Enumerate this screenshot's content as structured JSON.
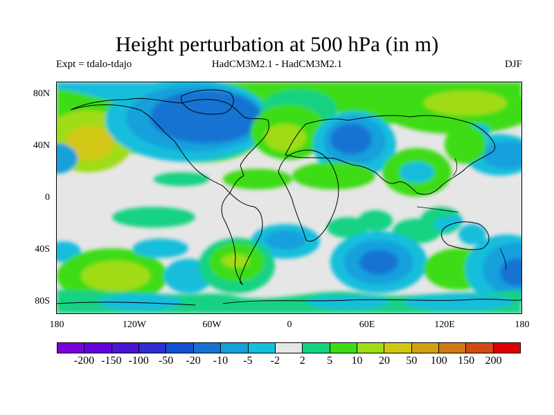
{
  "title": "Height perturbation at 500 hPa (in m)",
  "subtitle_left": "Expt = tdalo-tdajo",
  "subtitle_center": "HadCM3M2.1 - HadCM3M2.1",
  "subtitle_right": "DJF",
  "lat_ticks": [
    "80N",
    "40N",
    "0",
    "40S",
    "80S"
  ],
  "lon_ticks": [
    "180",
    "120W",
    "60W",
    "0",
    "60E",
    "120E",
    "180"
  ],
  "colorbar": {
    "colors": [
      "#7a00dc",
      "#6400dc",
      "#4b14d2",
      "#2d2dd2",
      "#1450d2",
      "#1473d2",
      "#14a0dc",
      "#14bedc",
      "#e6e6e6",
      "#14d282",
      "#3cdc14",
      "#a0dc14",
      "#d2c814",
      "#d2a014",
      "#d27814",
      "#d24b14",
      "#dc0000"
    ],
    "labels": [
      "-200",
      "-150",
      "-100",
      "-50",
      "-20",
      "-10",
      "-5",
      "-2",
      "2",
      "5",
      "10",
      "20",
      "50",
      "100",
      "150",
      "200"
    ]
  }
}
